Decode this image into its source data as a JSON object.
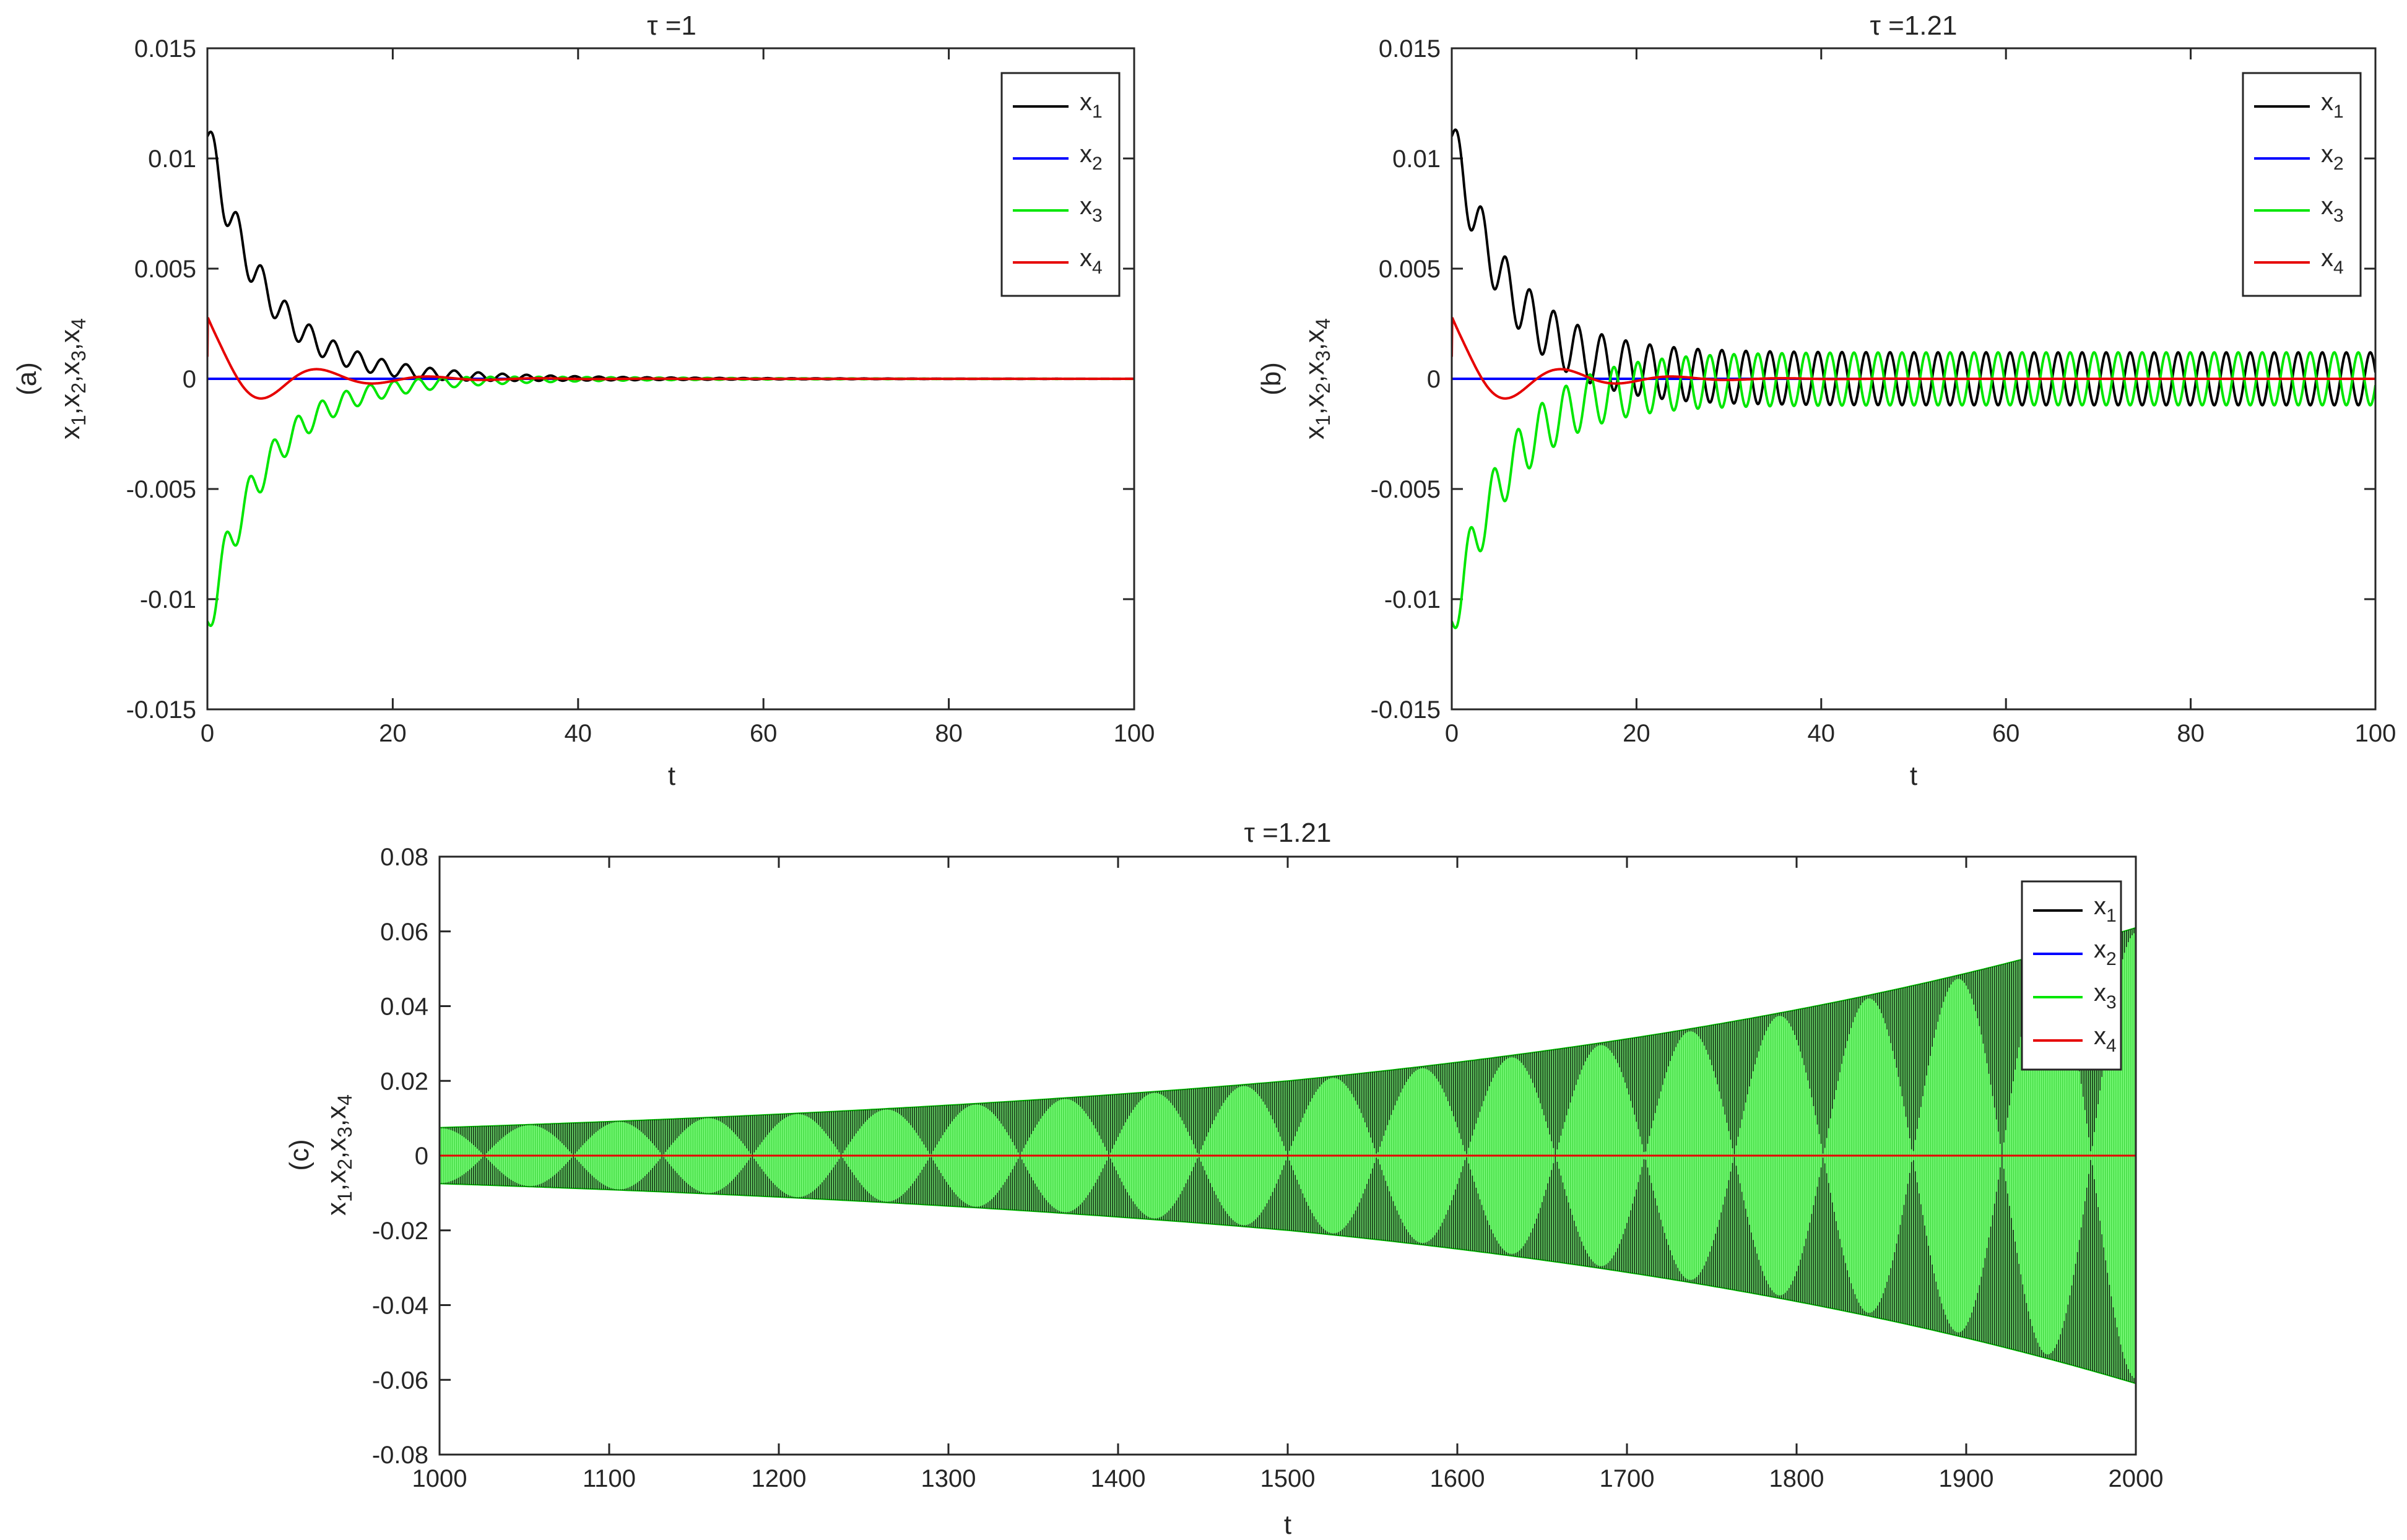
{
  "figure": {
    "background": "#ffffff",
    "axis_color": "#262626"
  },
  "chart_data": [
    {
      "id": "a",
      "type": "line",
      "title": "τ =1",
      "xlabel": "t",
      "ylabel": "x₁,x₂,x₃,x₄",
      "ylabel_parts": [
        "x",
        "1",
        ",x",
        "2",
        ",x",
        "3",
        ",x",
        "4"
      ],
      "panel_label": "(a)",
      "xlim": [
        0,
        100
      ],
      "ylim": [
        -0.015,
        0.015
      ],
      "xticks": [
        0,
        20,
        40,
        60,
        80,
        100
      ],
      "xtick_labels": [
        "0",
        "20",
        "40",
        "60",
        "80",
        "100"
      ],
      "yticks": [
        -0.015,
        -0.01,
        -0.005,
        0,
        0.005,
        0.01,
        0.015
      ],
      "ytick_labels": [
        "-0.015",
        "-0.01",
        "-0.005",
        "0",
        "0.005",
        "0.01",
        "0.015"
      ],
      "grid": false,
      "legend_position": "top-right",
      "series": [
        {
          "name": "x1",
          "label_main": "x",
          "label_sub": "1",
          "color": "#000000",
          "x0": 0.011,
          "decay": 0.16,
          "amp": 0.0011,
          "adecay": 0.06,
          "period": 2.6,
          "final_amp": 0.0
        },
        {
          "name": "x2",
          "label_main": "x",
          "label_sub": "2",
          "color": "#0000ff",
          "x0": 0.0,
          "decay": 0.2,
          "amp": 0.0,
          "adecay": 0.1,
          "period": 2.6,
          "final_amp": 0.0
        },
        {
          "name": "x3",
          "label_main": "x",
          "label_sub": "3",
          "color": "#00e600",
          "x0": -0.011,
          "decay": 0.16,
          "amp": 0.0011,
          "adecay": 0.06,
          "period": 2.6,
          "final_amp": 0.0
        },
        {
          "name": "x4",
          "label_main": "x",
          "label_sub": "4",
          "color": "#e60000",
          "x0": 0.001,
          "decay": 0.15,
          "amp": 0.0,
          "adecay": 0.15,
          "period": 12.0,
          "final_amp": 0.0
        }
      ]
    },
    {
      "id": "b",
      "type": "line",
      "title": "τ =1.21",
      "xlabel": "t",
      "ylabel": "x₁,x₂,x₃,x₄",
      "ylabel_parts": [
        "x",
        "1",
        ",x",
        "2",
        ",x",
        "3",
        ",x",
        "4"
      ],
      "panel_label": "(b)",
      "xlim": [
        0,
        100
      ],
      "ylim": [
        -0.015,
        0.015
      ],
      "xticks": [
        0,
        20,
        40,
        60,
        80,
        100
      ],
      "xtick_labels": [
        "0",
        "20",
        "40",
        "60",
        "80",
        "100"
      ],
      "yticks": [
        -0.015,
        -0.01,
        -0.005,
        0,
        0.005,
        0.01,
        0.015
      ],
      "ytick_labels": [
        "-0.015",
        "-0.01",
        "-0.005",
        "0",
        "0.005",
        "0.01",
        "0.015"
      ],
      "grid": false,
      "legend_position": "top-right",
      "series": [
        {
          "name": "x1",
          "label_main": "x",
          "label_sub": "1",
          "color": "#000000",
          "x0": 0.011,
          "decay": 0.16,
          "amp": 0.0012,
          "adecay": 0.0,
          "period": 2.6,
          "final_amp": 0.0012
        },
        {
          "name": "x2",
          "label_main": "x",
          "label_sub": "2",
          "color": "#0000ff",
          "x0": 0.0,
          "decay": 0.2,
          "amp": 0.0,
          "adecay": 0.1,
          "period": 2.6,
          "final_amp": 0.0
        },
        {
          "name": "x3",
          "label_main": "x",
          "label_sub": "3",
          "color": "#00e600",
          "x0": -0.011,
          "decay": 0.16,
          "amp": 0.0012,
          "adecay": 0.0,
          "period": 2.6,
          "final_amp": 0.0012
        },
        {
          "name": "x4",
          "label_main": "x",
          "label_sub": "4",
          "color": "#e60000",
          "x0": 0.001,
          "decay": 0.15,
          "amp": 0.0,
          "adecay": 0.15,
          "period": 12.0,
          "final_amp": 0.0
        }
      ]
    },
    {
      "id": "c",
      "type": "line",
      "title": "τ =1.21",
      "xlabel": "t",
      "ylabel": "x₁,x₂,x₃,x₄",
      "ylabel_parts": [
        "x",
        "1",
        ",x",
        "2",
        ",x",
        "3",
        ",x",
        "4"
      ],
      "panel_label": "(c)",
      "xlim": [
        1000,
        2000
      ],
      "ylim": [
        -0.08,
        0.08
      ],
      "xticks": [
        1000,
        1100,
        1200,
        1300,
        1400,
        1500,
        1600,
        1700,
        1800,
        1900,
        2000
      ],
      "xtick_labels": [
        "1000",
        "1100",
        "1200",
        "1300",
        "1400",
        "1500",
        "1600",
        "1700",
        "1800",
        "1900",
        "2000"
      ],
      "yticks": [
        -0.08,
        -0.06,
        -0.04,
        -0.02,
        0,
        0.02,
        0.04,
        0.06,
        0.08
      ],
      "ytick_labels": [
        "-0.08",
        "-0.06",
        "-0.04",
        "-0.02",
        "0",
        "0.02",
        "0.04",
        "0.06",
        "0.08"
      ],
      "grid": false,
      "legend_position": "top-right",
      "envelope": {
        "t": [
          1000,
          1500,
          2000
        ],
        "amplitude": [
          0.0075,
          0.02,
          0.061
        ]
      },
      "beat_count": 19,
      "series": [
        {
          "name": "x1",
          "label_main": "x",
          "label_sub": "1",
          "color": "#000000"
        },
        {
          "name": "x2",
          "label_main": "x",
          "label_sub": "2",
          "color": "#0000ff"
        },
        {
          "name": "x3",
          "label_main": "x",
          "label_sub": "3",
          "color": "#00e600"
        },
        {
          "name": "x4",
          "label_main": "x",
          "label_sub": "4",
          "color": "#e60000"
        }
      ]
    }
  ]
}
